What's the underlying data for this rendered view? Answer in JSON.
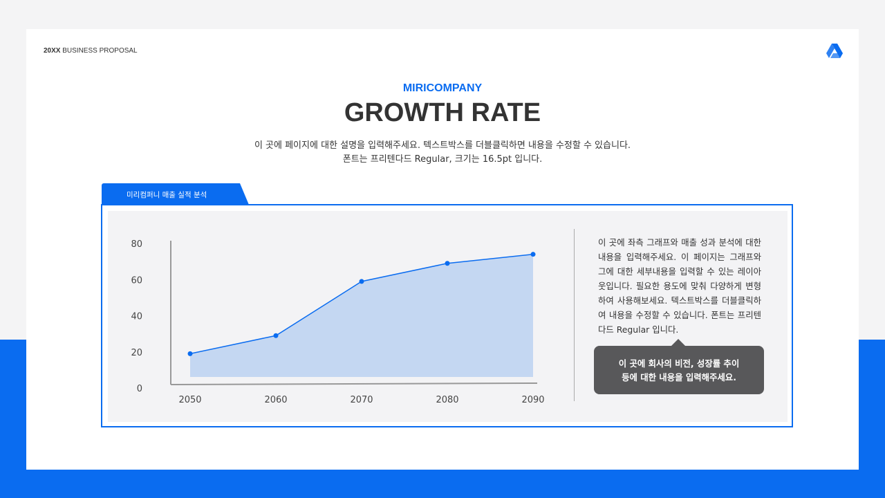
{
  "header": {
    "year": "20XX",
    "label": "BUSINESS PROPOSAL"
  },
  "company": "MIRICOMPANY",
  "title": "GROWTH RATE",
  "description": [
    "이 곳에 페이지에 대한 설명을 입력해주세요. 텍스트박스를 더블클릭하면 내용을 수정할 수 있습니다.",
    "폰트는 프리텐다드 Regular, 크기는 16.5pt 입니다."
  ],
  "tab_label": "미리컴퍼니 매출 실적 분석",
  "side_text": "이 곳에 좌측 그래프와 매출 성과 분석에 대한 내용을 입력해주세요. 이 페이지는 그래프와 그에 대한 세부내용을 입력할 수 있는 레이아웃입니다. 필요한 용도에 맞춰 다양하게 변형하여 사용해보세요. 텍스트박스를 더블클릭하여 내용을 수정할 수 있습니다. 폰트는 프리텐다드 Regular 입니다.",
  "bubble": [
    "이 곳에 회사의 비전, 성장률 추이",
    "등에 대한 내용을 입력해주세요."
  ],
  "colors": {
    "accent": "#0a6cf0",
    "area": "#c4d7f2",
    "bubble": "#58585a"
  },
  "logo_icon": "triangle-drive-icon",
  "chart_data": {
    "type": "area",
    "x": [
      "2050",
      "2060",
      "2070",
      "2080",
      "2090"
    ],
    "values": [
      19,
      29,
      59,
      69,
      74
    ],
    "yticks": [
      "0",
      "20",
      "40",
      "60",
      "80"
    ],
    "ylim": [
      0,
      80
    ],
    "grid": false,
    "title": "",
    "xlabel": "",
    "ylabel": ""
  }
}
